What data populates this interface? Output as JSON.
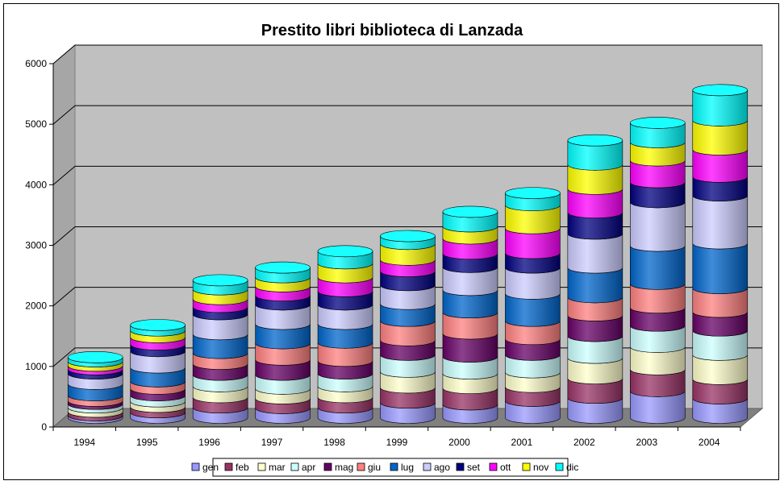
{
  "chart_data": {
    "type": "bar",
    "stacked": true,
    "style": "3d-cylinder",
    "title": "Prestito libri biblioteca di Lanzada",
    "xlabel": "",
    "ylabel": "",
    "ylim": [
      0,
      6000
    ],
    "yticks": [
      "0",
      "1000",
      "2000",
      "3000",
      "4000",
      "5000",
      "6000"
    ],
    "ytick_values": [
      0,
      1000,
      2000,
      3000,
      4000,
      5000,
      6000
    ],
    "grid": true,
    "legend_position": "bottom",
    "categories": [
      "1994",
      "1995",
      "1996",
      "1997",
      "1998",
      "1999",
      "2000",
      "2001",
      "2002",
      "2003",
      "2004"
    ],
    "series": [
      {
        "name": "gen",
        "color": "#9999ff",
        "values": [
          40,
          90,
          170,
          160,
          170,
          250,
          220,
          280,
          330,
          440,
          320
        ]
      },
      {
        "name": "feb",
        "color": "#993366",
        "values": [
          60,
          90,
          170,
          160,
          170,
          250,
          270,
          230,
          320,
          360,
          320
        ]
      },
      {
        "name": "mar",
        "color": "#ffffcc",
        "values": [
          70,
          90,
          180,
          160,
          180,
          260,
          240,
          240,
          340,
          370,
          400
        ]
      },
      {
        "name": "apr",
        "color": "#ccffff",
        "values": [
          60,
          100,
          190,
          230,
          210,
          280,
          280,
          290,
          360,
          350,
          400
        ]
      },
      {
        "name": "mag",
        "color": "#660066",
        "values": [
          50,
          110,
          180,
          250,
          210,
          240,
          380,
          260,
          340,
          300,
          310
        ]
      },
      {
        "name": "giu",
        "color": "#ff8080",
        "values": [
          90,
          120,
          180,
          270,
          300,
          320,
          350,
          300,
          300,
          390,
          390
        ]
      },
      {
        "name": "lug",
        "color": "#0066cc",
        "values": [
          190,
          230,
          310,
          320,
          310,
          280,
          370,
          450,
          490,
          630,
          740
        ]
      },
      {
        "name": "ago",
        "color": "#ccccff",
        "values": [
          170,
          270,
          330,
          320,
          320,
          310,
          380,
          430,
          560,
          720,
          790
        ]
      },
      {
        "name": "set",
        "color": "#000080",
        "values": [
          70,
          110,
          120,
          150,
          220,
          230,
          220,
          240,
          350,
          330,
          310
        ]
      },
      {
        "name": "ott",
        "color": "#ff00ff",
        "values": [
          60,
          120,
          130,
          150,
          230,
          190,
          250,
          410,
          390,
          360,
          450
        ]
      },
      {
        "name": "nov",
        "color": "#ffff00",
        "values": [
          70,
          110,
          160,
          150,
          230,
          260,
          200,
          380,
          400,
          300,
          480
        ]
      },
      {
        "name": "dic",
        "color": "#00ffff",
        "values": [
          70,
          90,
          150,
          160,
          200,
          130,
          240,
          200,
          400,
          320,
          500
        ]
      }
    ]
  }
}
